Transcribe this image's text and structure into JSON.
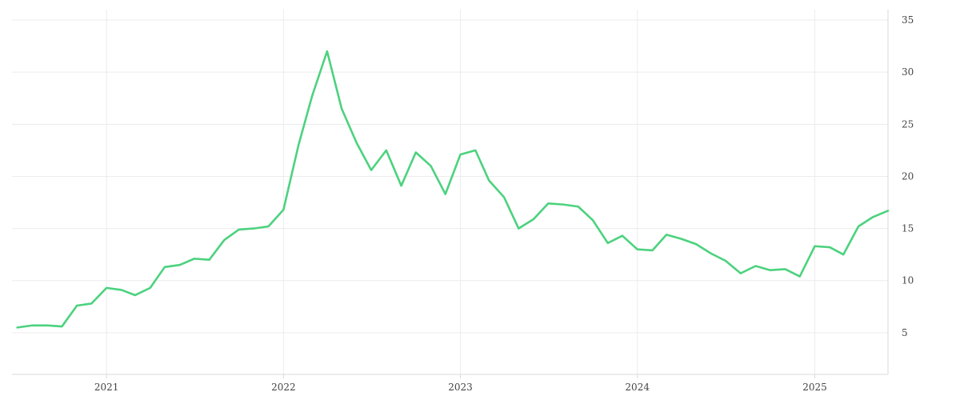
{
  "chart_data": {
    "type": "line",
    "title": "",
    "xlabel": "",
    "ylabel": "",
    "x_tick_labels": [
      "2021",
      "2022",
      "2023",
      "2024",
      "2025"
    ],
    "y_tick_labels": [
      "5",
      "10",
      "15",
      "20",
      "25",
      "30",
      "35"
    ],
    "ylim": [
      1,
      36
    ],
    "xlim": [
      "2020-06-20",
      "2025-06-01"
    ],
    "y_axis_side": "right",
    "grid": true,
    "legend": "none",
    "colors": {
      "series": "#4cd27e",
      "grid": "#ececec",
      "axis": "#d9d9d9",
      "text": "#444444"
    },
    "series": [
      {
        "x": [
          "2020-07-01",
          "2020-08-01",
          "2020-09-01",
          "2020-10-01",
          "2020-11-01",
          "2020-12-01",
          "2021-01-01",
          "2021-02-01",
          "2021-03-01",
          "2021-04-01",
          "2021-05-01",
          "2021-06-01",
          "2021-07-01",
          "2021-08-01",
          "2021-09-01",
          "2021-10-01",
          "2021-11-01",
          "2021-12-01",
          "2022-01-01",
          "2022-02-01",
          "2022-03-01",
          "2022-04-01",
          "2022-05-01",
          "2022-06-01",
          "2022-07-01",
          "2022-08-01",
          "2022-09-01",
          "2022-10-01",
          "2022-11-01",
          "2022-12-01",
          "2023-01-01",
          "2023-02-01",
          "2023-03-01",
          "2023-04-01",
          "2023-05-01",
          "2023-06-01",
          "2023-07-01",
          "2023-08-01",
          "2023-09-01",
          "2023-10-01",
          "2023-11-01",
          "2023-12-01",
          "2024-01-01",
          "2024-02-01",
          "2024-03-01",
          "2024-04-01",
          "2024-05-01",
          "2024-06-01",
          "2024-07-01",
          "2024-08-01",
          "2024-09-01",
          "2024-10-01",
          "2024-11-01",
          "2024-12-01",
          "2025-01-01",
          "2025-02-01",
          "2025-03-01",
          "2025-04-01",
          "2025-05-01",
          "2025-06-01"
        ],
        "values": [
          5.5,
          5.7,
          5.7,
          5.6,
          7.6,
          7.8,
          9.3,
          9.1,
          8.6,
          9.3,
          11.3,
          11.5,
          12.1,
          12.0,
          13.9,
          14.9,
          15.0,
          15.2,
          16.8,
          23.0,
          27.7,
          32.0,
          26.5,
          23.2,
          20.6,
          22.5,
          19.1,
          22.3,
          21.0,
          18.3,
          22.1,
          22.5,
          19.6,
          18.0,
          15.0,
          15.9,
          17.4,
          17.3,
          17.1,
          15.8,
          13.6,
          14.3,
          13.0,
          12.9,
          14.4,
          14.0,
          13.5,
          12.6,
          11.9,
          10.7,
          11.4,
          11.0,
          11.1,
          10.4,
          13.3,
          13.2,
          12.5,
          15.2,
          16.1,
          16.7
        ]
      }
    ]
  }
}
